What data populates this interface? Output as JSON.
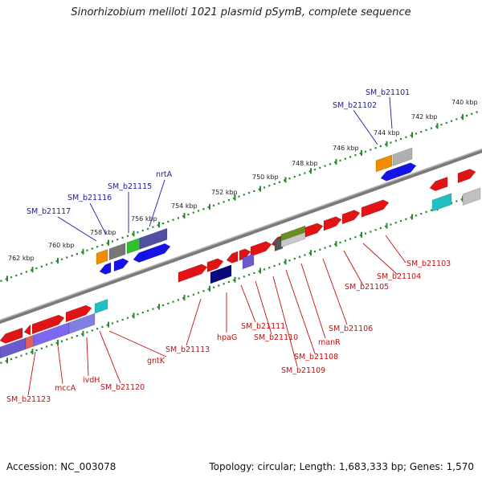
{
  "title": "Sinorhizobium meliloti 1021 plasmid pSymB, complete sequence",
  "footer": {
    "accession": "Accession: NC_003078",
    "summary": "Topology: circular; Length: 1,683,333 bp; Genes: 1,570"
  },
  "colors": {
    "forward_gene": "#e01010",
    "blue_gene": "#1010e0",
    "label_forward": "#1a1aa0",
    "label_reverse": "#c01010",
    "tick_green": "#2a8a2a",
    "backbone": "#8a8a8a"
  },
  "ticks": [
    "740 kbp",
    "742 kbp",
    "744 kbp",
    "746 kbp",
    "748 kbp",
    "750 kbp",
    "752 kbp",
    "754 kbp",
    "756 kbp",
    "758 kbp",
    "760 kbp",
    "762 kbp"
  ],
  "upper_labels": [
    "SM_b21101",
    "SM_b21102",
    "nrtA",
    "SM_b21115",
    "SM_b21116",
    "SM_b21117"
  ],
  "lower_labels": [
    "SM_b21103",
    "SM_b21104",
    "SM_b21105",
    "SM_b21106",
    "manR",
    "SM_b21108",
    "SM_b21109",
    "SM_b21110",
    "SM_b21111",
    "hpaG",
    "SM_b21113",
    "gntK",
    "SM_b21120",
    "ivdH",
    "mccA",
    "SM_b21123"
  ]
}
